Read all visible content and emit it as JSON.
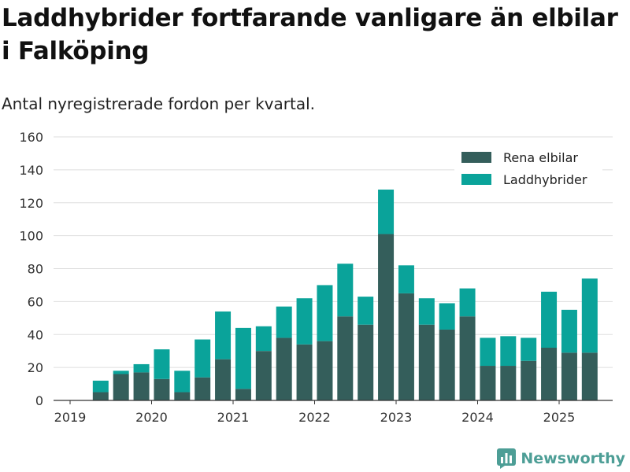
{
  "title": "Laddhybrider fortfarande vanligare än elbilar i Falköping",
  "subtitle": "Antal nyregistrerade fordon per kvartal.",
  "brand": {
    "name": "Newsworthy",
    "icon": "newsworthy-chart-logo",
    "color": "#4d9e96"
  },
  "colors": {
    "rena_elbilar": "#345e5b",
    "laddhybrider": "#0aa39a",
    "grid": "#dddddd",
    "axis": "#333333"
  },
  "chart_data": {
    "type": "bar",
    "stacked": true,
    "x_ticks": [
      "2019",
      "2020",
      "2021",
      "2022",
      "2023",
      "2024",
      "2025"
    ],
    "y_ticks": [
      0,
      20,
      40,
      60,
      80,
      100,
      120,
      140,
      160
    ],
    "ylim": [
      0,
      160
    ],
    "grid": true,
    "legend_position": "top-right",
    "categories": [
      "2019-Q2",
      "2019-Q3",
      "2019-Q4",
      "2020-Q1",
      "2020-Q2",
      "2020-Q3",
      "2020-Q4",
      "2021-Q1",
      "2021-Q2",
      "2021-Q3",
      "2021-Q4",
      "2022-Q1",
      "2022-Q2",
      "2022-Q3",
      "2022-Q4",
      "2023-Q1",
      "2023-Q2",
      "2023-Q3",
      "2023-Q4",
      "2024-Q1",
      "2024-Q2",
      "2024-Q3",
      "2024-Q4",
      "2025-Q1",
      "2025-Q2"
    ],
    "series": [
      {
        "name": "Rena elbilar",
        "values": [
          5,
          16,
          17,
          13,
          5,
          14,
          25,
          7,
          30,
          38,
          34,
          36,
          51,
          46,
          101,
          65,
          46,
          43,
          51,
          21,
          21,
          24,
          32,
          29,
          29
        ]
      },
      {
        "name": "Laddhybrider",
        "values": [
          7,
          2,
          5,
          18,
          13,
          23,
          29,
          37,
          15,
          19,
          28,
          34,
          32,
          17,
          27,
          17,
          16,
          16,
          17,
          17,
          18,
          14,
          34,
          26,
          45
        ]
      }
    ]
  }
}
